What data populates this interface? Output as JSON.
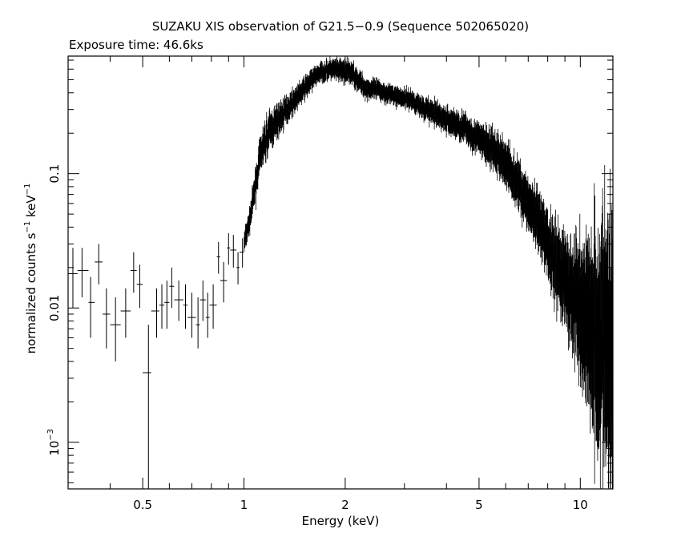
{
  "chart_data": {
    "type": "scatter",
    "title": "SUZAKU XIS observation of G21.5−0.9 (Sequence 502065020)",
    "subtitle": "Exposure time: 46.6ks",
    "xlabel": "Energy (keV)",
    "ylabel": {
      "base": "normalized counts s",
      "exp1": "−1",
      "mid": " keV",
      "exp2": "−1"
    },
    "xscale": "log",
    "yscale": "log",
    "xlim": [
      0.3,
      12.5
    ],
    "ylim": [
      0.00045,
      0.75
    ],
    "xticks": {
      "labeled": [
        {
          "value": 0.5,
          "label": "0.5"
        },
        {
          "value": 1,
          "label": "1"
        },
        {
          "value": 2,
          "label": "2"
        },
        {
          "value": 5,
          "label": "5"
        },
        {
          "value": 10,
          "label": "10"
        }
      ],
      "minor": [
        0.3,
        0.4,
        0.6,
        0.7,
        0.8,
        0.9,
        3,
        4,
        6,
        7,
        8,
        9
      ]
    },
    "yticks": {
      "labeled": [
        {
          "value": 0.1,
          "label": "0.1"
        },
        {
          "value": 0.01,
          "label": "0.01"
        },
        {
          "value": 0.001,
          "label": "10",
          "exponent": "−3"
        }
      ],
      "minor": [
        0.0005,
        0.0006,
        0.0007,
        0.0008,
        0.0009,
        0.002,
        0.003,
        0.004,
        0.005,
        0.006,
        0.007,
        0.008,
        0.009,
        0.02,
        0.03,
        0.04,
        0.05,
        0.06,
        0.07,
        0.08,
        0.09,
        0.2,
        0.3,
        0.4,
        0.5,
        0.6,
        0.7
      ]
    },
    "grid": false,
    "legend": "none",
    "series": [
      {
        "color": "#000000",
        "points": [
          {
            "x": 0.31,
            "xerr": [
              0.3,
              0.32
            ],
            "y": 0.018,
            "yerr": [
              0.01,
              0.028
            ]
          },
          {
            "x": 0.33,
            "xerr": [
              0.32,
              0.345
            ],
            "y": 0.019,
            "yerr": [
              0.012,
              0.028
            ]
          },
          {
            "x": 0.35,
            "xerr": [
              0.345,
              0.36
            ],
            "y": 0.011,
            "yerr": [
              0.006,
              0.017
            ]
          },
          {
            "x": 0.37,
            "xerr": [
              0.36,
              0.38
            ],
            "y": 0.022,
            "yerr": [
              0.015,
              0.03
            ]
          },
          {
            "x": 0.39,
            "xerr": [
              0.38,
              0.4
            ],
            "y": 0.009,
            "yerr": [
              0.005,
              0.014
            ]
          },
          {
            "x": 0.415,
            "xerr": [
              0.4,
              0.43
            ],
            "y": 0.0075,
            "yerr": [
              0.004,
              0.012
            ]
          },
          {
            "x": 0.445,
            "xerr": [
              0.43,
              0.46
            ],
            "y": 0.0095,
            "yerr": [
              0.006,
              0.014
            ]
          },
          {
            "x": 0.47,
            "xerr": [
              0.46,
              0.48
            ],
            "y": 0.019,
            "yerr": [
              0.013,
              0.026
            ]
          },
          {
            "x": 0.49,
            "xerr": [
              0.48,
              0.5
            ],
            "y": 0.015,
            "yerr": [
              0.01,
              0.021
            ]
          },
          {
            "x": 0.52,
            "xerr": [
              0.5,
              0.53
            ],
            "y": 0.0033,
            "yerr": [
              0.00045,
              0.0075
            ]
          },
          {
            "x": 0.55,
            "xerr": [
              0.53,
              0.56
            ],
            "y": 0.0095,
            "yerr": [
              0.006,
              0.014
            ]
          },
          {
            "x": 0.57,
            "xerr": [
              0.56,
              0.58
            ],
            "y": 0.0105,
            "yerr": [
              0.007,
              0.015
            ]
          },
          {
            "x": 0.59,
            "xerr": [
              0.58,
              0.6
            ],
            "y": 0.011,
            "yerr": [
              0.007,
              0.016
            ]
          },
          {
            "x": 0.61,
            "xerr": [
              0.6,
              0.62
            ],
            "y": 0.0145,
            "yerr": [
              0.01,
              0.02
            ]
          },
          {
            "x": 0.64,
            "xerr": [
              0.62,
              0.66
            ],
            "y": 0.0115,
            "yerr": [
              0.008,
              0.016
            ]
          },
          {
            "x": 0.67,
            "xerr": [
              0.66,
              0.68
            ],
            "y": 0.0105,
            "yerr": [
              0.007,
              0.015
            ]
          },
          {
            "x": 0.7,
            "xerr": [
              0.68,
              0.72
            ],
            "y": 0.0085,
            "yerr": [
              0.006,
              0.013
            ]
          },
          {
            "x": 0.73,
            "xerr": [
              0.72,
              0.74
            ],
            "y": 0.0075,
            "yerr": [
              0.005,
              0.012
            ]
          },
          {
            "x": 0.755,
            "xerr": [
              0.74,
              0.77
            ],
            "y": 0.0115,
            "yerr": [
              0.008,
              0.016
            ]
          },
          {
            "x": 0.78,
            "xerr": [
              0.77,
              0.79
            ],
            "y": 0.0085,
            "yerr": [
              0.006,
              0.013
            ]
          },
          {
            "x": 0.81,
            "xerr": [
              0.79,
              0.83
            ],
            "y": 0.0105,
            "yerr": [
              0.007,
              0.015
            ]
          },
          {
            "x": 0.84,
            "xerr": [
              0.83,
              0.85
            ],
            "y": 0.024,
            "yerr": [
              0.018,
              0.031
            ]
          },
          {
            "x": 0.87,
            "xerr": [
              0.85,
              0.89
            ],
            "y": 0.016,
            "yerr": [
              0.011,
              0.022
            ]
          },
          {
            "x": 0.9,
            "xerr": [
              0.89,
              0.91
            ],
            "y": 0.028,
            "yerr": [
              0.021,
              0.036
            ]
          },
          {
            "x": 0.93,
            "xerr": [
              0.91,
              0.95
            ],
            "y": 0.027,
            "yerr": [
              0.02,
              0.035
            ]
          },
          {
            "x": 0.96,
            "xerr": [
              0.95,
              0.97
            ],
            "y": 0.02,
            "yerr": [
              0.015,
              0.026
            ]
          },
          {
            "x": 0.99,
            "xerr": [
              0.97,
              1.0
            ],
            "y": 0.026,
            "yerr": [
              0.02,
              0.033
            ]
          }
        ],
        "continuum": {
          "x": [
            1.0,
            1.04,
            1.08,
            1.12,
            1.18,
            1.25,
            1.35,
            1.5,
            1.65,
            1.8,
            1.95,
            2.1,
            2.3,
            2.5,
            2.8,
            3.1,
            3.5,
            4.0,
            4.5,
            5.0,
            5.5,
            6.0,
            6.5,
            7.0,
            7.5,
            8.0,
            8.5,
            9.0,
            9.5,
            10.0,
            10.5,
            11.0,
            11.5,
            12.0,
            12.5
          ],
          "y": [
            0.03,
            0.045,
            0.08,
            0.14,
            0.2,
            0.24,
            0.31,
            0.42,
            0.55,
            0.6,
            0.58,
            0.56,
            0.43,
            0.42,
            0.38,
            0.36,
            0.3,
            0.25,
            0.22,
            0.18,
            0.15,
            0.12,
            0.085,
            0.06,
            0.042,
            0.03,
            0.022,
            0.016,
            0.012,
            0.01,
            0.008,
            0.007,
            0.006,
            0.005,
            0.004
          ],
          "scatter_dex": [
            0.06,
            0.07,
            0.1,
            0.1,
            0.12,
            0.1,
            0.08,
            0.07,
            0.06,
            0.06,
            0.07,
            0.07,
            0.06,
            0.06,
            0.06,
            0.06,
            0.07,
            0.08,
            0.09,
            0.1,
            0.12,
            0.14,
            0.15,
            0.17,
            0.19,
            0.21,
            0.24,
            0.28,
            0.35,
            0.45,
            0.55,
            0.65,
            0.75,
            0.85,
            0.9
          ]
        }
      }
    ]
  }
}
